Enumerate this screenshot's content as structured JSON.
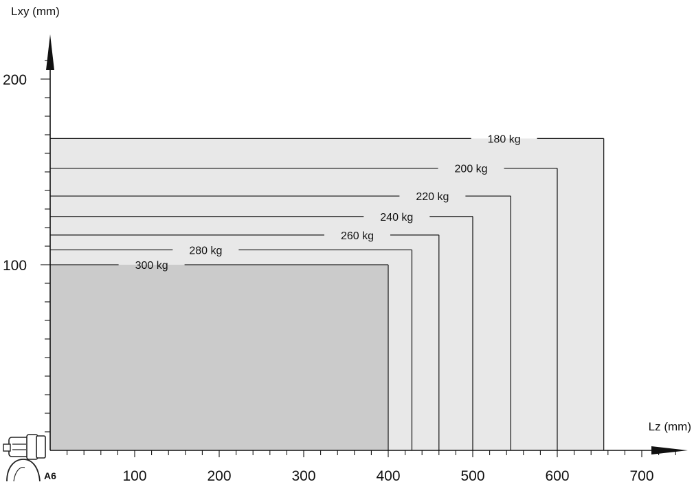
{
  "chart_data": {
    "type": "area",
    "xlabel": "Lz (mm)",
    "ylabel": "Lxy (mm)",
    "xlim": [
      0,
      750
    ],
    "ylim": [
      0,
      220
    ],
    "x_ticks": [
      "100",
      "200",
      "300",
      "400",
      "500",
      "600",
      "700"
    ],
    "x_tick_values": [
      100,
      200,
      300,
      400,
      500,
      600,
      700
    ],
    "y_ticks": [
      "100",
      "200"
    ],
    "y_tick_values": [
      100,
      200
    ],
    "origin_label": "A6",
    "series": [
      {
        "name": "180 kg",
        "lz": 655,
        "lxy": 168
      },
      {
        "name": "200 kg",
        "lz": 600,
        "lxy": 152
      },
      {
        "name": "220 kg",
        "lz": 545,
        "lxy": 137
      },
      {
        "name": "240 kg",
        "lz": 500,
        "lxy": 126
      },
      {
        "name": "260 kg",
        "lz": 460,
        "lxy": 116
      },
      {
        "name": "280 kg",
        "lz": 428,
        "lxy": 108
      },
      {
        "name": "300 kg",
        "lz": 400,
        "lxy": 100
      }
    ],
    "colors": {
      "envelope_fill": "#e8e8e8",
      "max_load_fill": "#cbcbcb",
      "line": "#222222",
      "axis": "#111111"
    }
  }
}
